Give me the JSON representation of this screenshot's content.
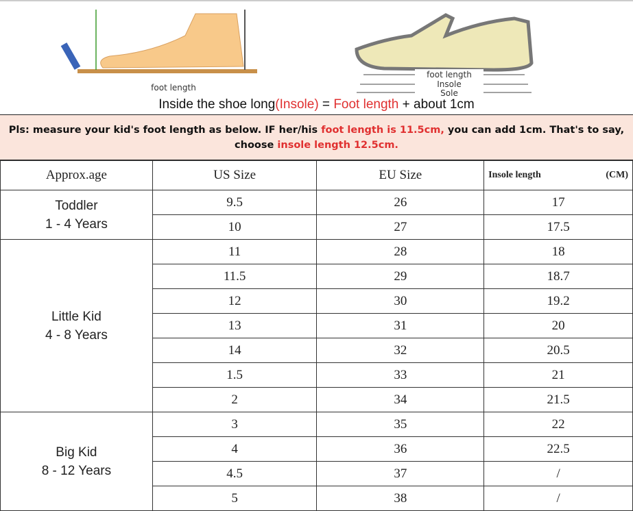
{
  "illustration": {
    "left_label": "foot length",
    "right_labels": [
      "foot length",
      "Insole",
      "Sole"
    ]
  },
  "formula": {
    "part1": "Inside the shoe long",
    "part2": "(Insole)",
    "part3": " = ",
    "part4": "Foot length",
    "part5": " + about 1cm"
  },
  "banner": {
    "t1": "Pls: measure your kid's foot length as below. IF her/his ",
    "t2": "foot length is 11.5cm,",
    "t3": " you can add 1cm. That's to say, choose ",
    "t4": "insole length 12.5cm."
  },
  "table": {
    "headers": {
      "age": "Approx.age",
      "us": "US Size",
      "eu": "EU Size",
      "insole": "Insole length",
      "unit": "(CM)"
    },
    "groups": [
      {
        "name": "Toddler",
        "range": "1 - 4 Years",
        "rows": [
          [
            "9.5",
            "26",
            "17"
          ],
          [
            "10",
            "27",
            "17.5"
          ]
        ]
      },
      {
        "name": "Little Kid",
        "range": "4 - 8 Years",
        "rows": [
          [
            "11",
            "28",
            "18"
          ],
          [
            "11.5",
            "29",
            "18.7"
          ],
          [
            "12",
            "30",
            "19.2"
          ],
          [
            "13",
            "31",
            "20"
          ],
          [
            "14",
            "32",
            "20.5"
          ],
          [
            "1.5",
            "33",
            "21"
          ],
          [
            "2",
            "34",
            "21.5"
          ]
        ]
      },
      {
        "name": "Big Kid",
        "range": "8 - 12 Years",
        "rows": [
          [
            "3",
            "35",
            "22"
          ],
          [
            "4",
            "36",
            "22.5"
          ],
          [
            "4.5",
            "37",
            "/"
          ],
          [
            "5",
            "38",
            "/"
          ]
        ]
      }
    ]
  }
}
